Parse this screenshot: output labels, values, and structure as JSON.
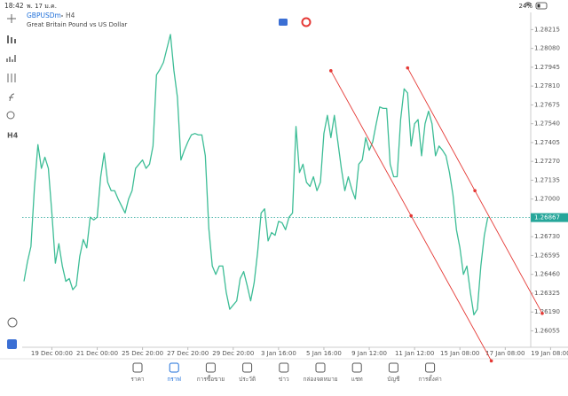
{
  "status_bar": {
    "time": "18:42",
    "date": "พ. 17 ม.ค.",
    "battery": "24%"
  },
  "chart_data": {
    "type": "line",
    "symbol": "GBPUSDm",
    "timeframe": "H4",
    "description": "Great Britain Pound vs US Dollar",
    "series": [
      {
        "color": "#3dbd96",
        "values": [
          1.2641,
          1.2655,
          1.2666,
          1.2708,
          1.2739,
          1.2722,
          1.273,
          1.2722,
          1.269,
          1.2654,
          1.2668,
          1.2652,
          1.2641,
          1.2643,
          1.2635,
          1.2638,
          1.2659,
          1.2671,
          1.2665,
          1.2687,
          1.2685,
          1.2687,
          1.2716,
          1.2733,
          1.2712,
          1.2706,
          1.2706,
          1.27,
          1.2695,
          1.269,
          1.27,
          1.2706,
          1.2722,
          1.2725,
          1.2728,
          1.2722,
          1.2725,
          1.2738,
          1.2789,
          1.2793,
          1.2798,
          1.2808,
          1.2818,
          1.2792,
          1.2773,
          1.2728,
          1.2735,
          1.2741,
          1.2746,
          1.2747,
          1.2746,
          1.2746,
          1.2731,
          1.2679,
          1.2652,
          1.2646,
          1.2652,
          1.2652,
          1.2633,
          1.2621,
          1.2624,
          1.2627,
          1.2643,
          1.2648,
          1.2638,
          1.2627,
          1.264,
          1.2662,
          1.269,
          1.2693,
          1.267,
          1.2676,
          1.2674,
          1.2684,
          1.2683,
          1.2678,
          1.2687,
          1.269,
          1.2752,
          1.2719,
          1.2725,
          1.2712,
          1.2709,
          1.2716,
          1.2706,
          1.2712,
          1.2747,
          1.276,
          1.2744,
          1.276,
          1.2741,
          1.2722,
          1.2706,
          1.2716,
          1.2707,
          1.27,
          1.2725,
          1.2728,
          1.2744,
          1.2735,
          1.2741,
          1.2754,
          1.2766,
          1.2765,
          1.2765,
          1.2725,
          1.2716,
          1.2716,
          1.2757,
          1.2779,
          1.2776,
          1.2738,
          1.2754,
          1.2757,
          1.2731,
          1.2754,
          1.2763,
          1.2754,
          1.2731,
          1.2738,
          1.2735,
          1.2731,
          1.2719,
          1.2703,
          1.2678,
          1.2665,
          1.2646,
          1.2652,
          1.2633,
          1.2617,
          1.2621,
          1.2652,
          1.2674,
          1.2687
        ]
      }
    ],
    "xlim": [
      0,
      151
    ],
    "xticks": [
      {
        "value": 8,
        "label": "19 Dec 00:00"
      },
      {
        "value": 21,
        "label": "21 Dec 00:00"
      },
      {
        "value": 34,
        "label": "25 Dec 20:00"
      },
      {
        "value": 47,
        "label": "27 Dec 20:00"
      },
      {
        "value": 60,
        "label": "29 Dec 20:00"
      },
      {
        "value": 73,
        "label": "3 Jan 16:00"
      },
      {
        "value": 86,
        "label": "5 Jan 16:00"
      },
      {
        "value": 99,
        "label": "9 Jan 12:00"
      },
      {
        "value": 112,
        "label": "11 Jan 12:00"
      },
      {
        "value": 125,
        "label": "15 Jan 08:00"
      },
      {
        "value": 138,
        "label": "17 Jan 08:00"
      },
      {
        "value": 151,
        "label": "19 Jan 08:00"
      }
    ],
    "ylim": [
      1.2595,
      1.283
    ],
    "yticks": [
      1.28215,
      {
        "value": 1.2808,
        "label": "1.28080"
      },
      1.27945,
      {
        "value": 1.2781,
        "label": "1.27810"
      },
      1.27675,
      {
        "value": 1.2754,
        "label": "1.27540"
      },
      1.27405,
      {
        "value": 1.2727,
        "label": "1.27270"
      },
      1.27135,
      {
        "value": 1.27,
        "label": "1.27000"
      },
      {
        "value": 1.2673,
        "label": "1.26730"
      },
      1.26595,
      {
        "value": 1.2646,
        "label": "1.26460"
      },
      1.26325,
      {
        "value": 1.2619,
        "label": "1.26190"
      },
      1.26055
    ],
    "current_price": {
      "value": 1.26867,
      "label": "1.26867",
      "color": "#26a69a"
    },
    "trendlines": [
      {
        "color": "#e53935",
        "points": [
          {
            "x": 88,
            "y": 1.2792
          },
          {
            "x": 134,
            "y": 1.2584
          }
        ]
      },
      {
        "color": "#e53935",
        "points": [
          {
            "x": 110,
            "y": 1.2794
          },
          {
            "x": 148.6,
            "y": 1.2618
          }
        ]
      }
    ]
  },
  "nav": {
    "items": [
      "ราคา",
      "กราฟ",
      "การซื้อขาย",
      "ประวัติ",
      "ข่าว",
      "กล่องจดหมาย",
      "แชท",
      "บัญชี",
      "การตั้งค่า"
    ],
    "active": 1
  }
}
